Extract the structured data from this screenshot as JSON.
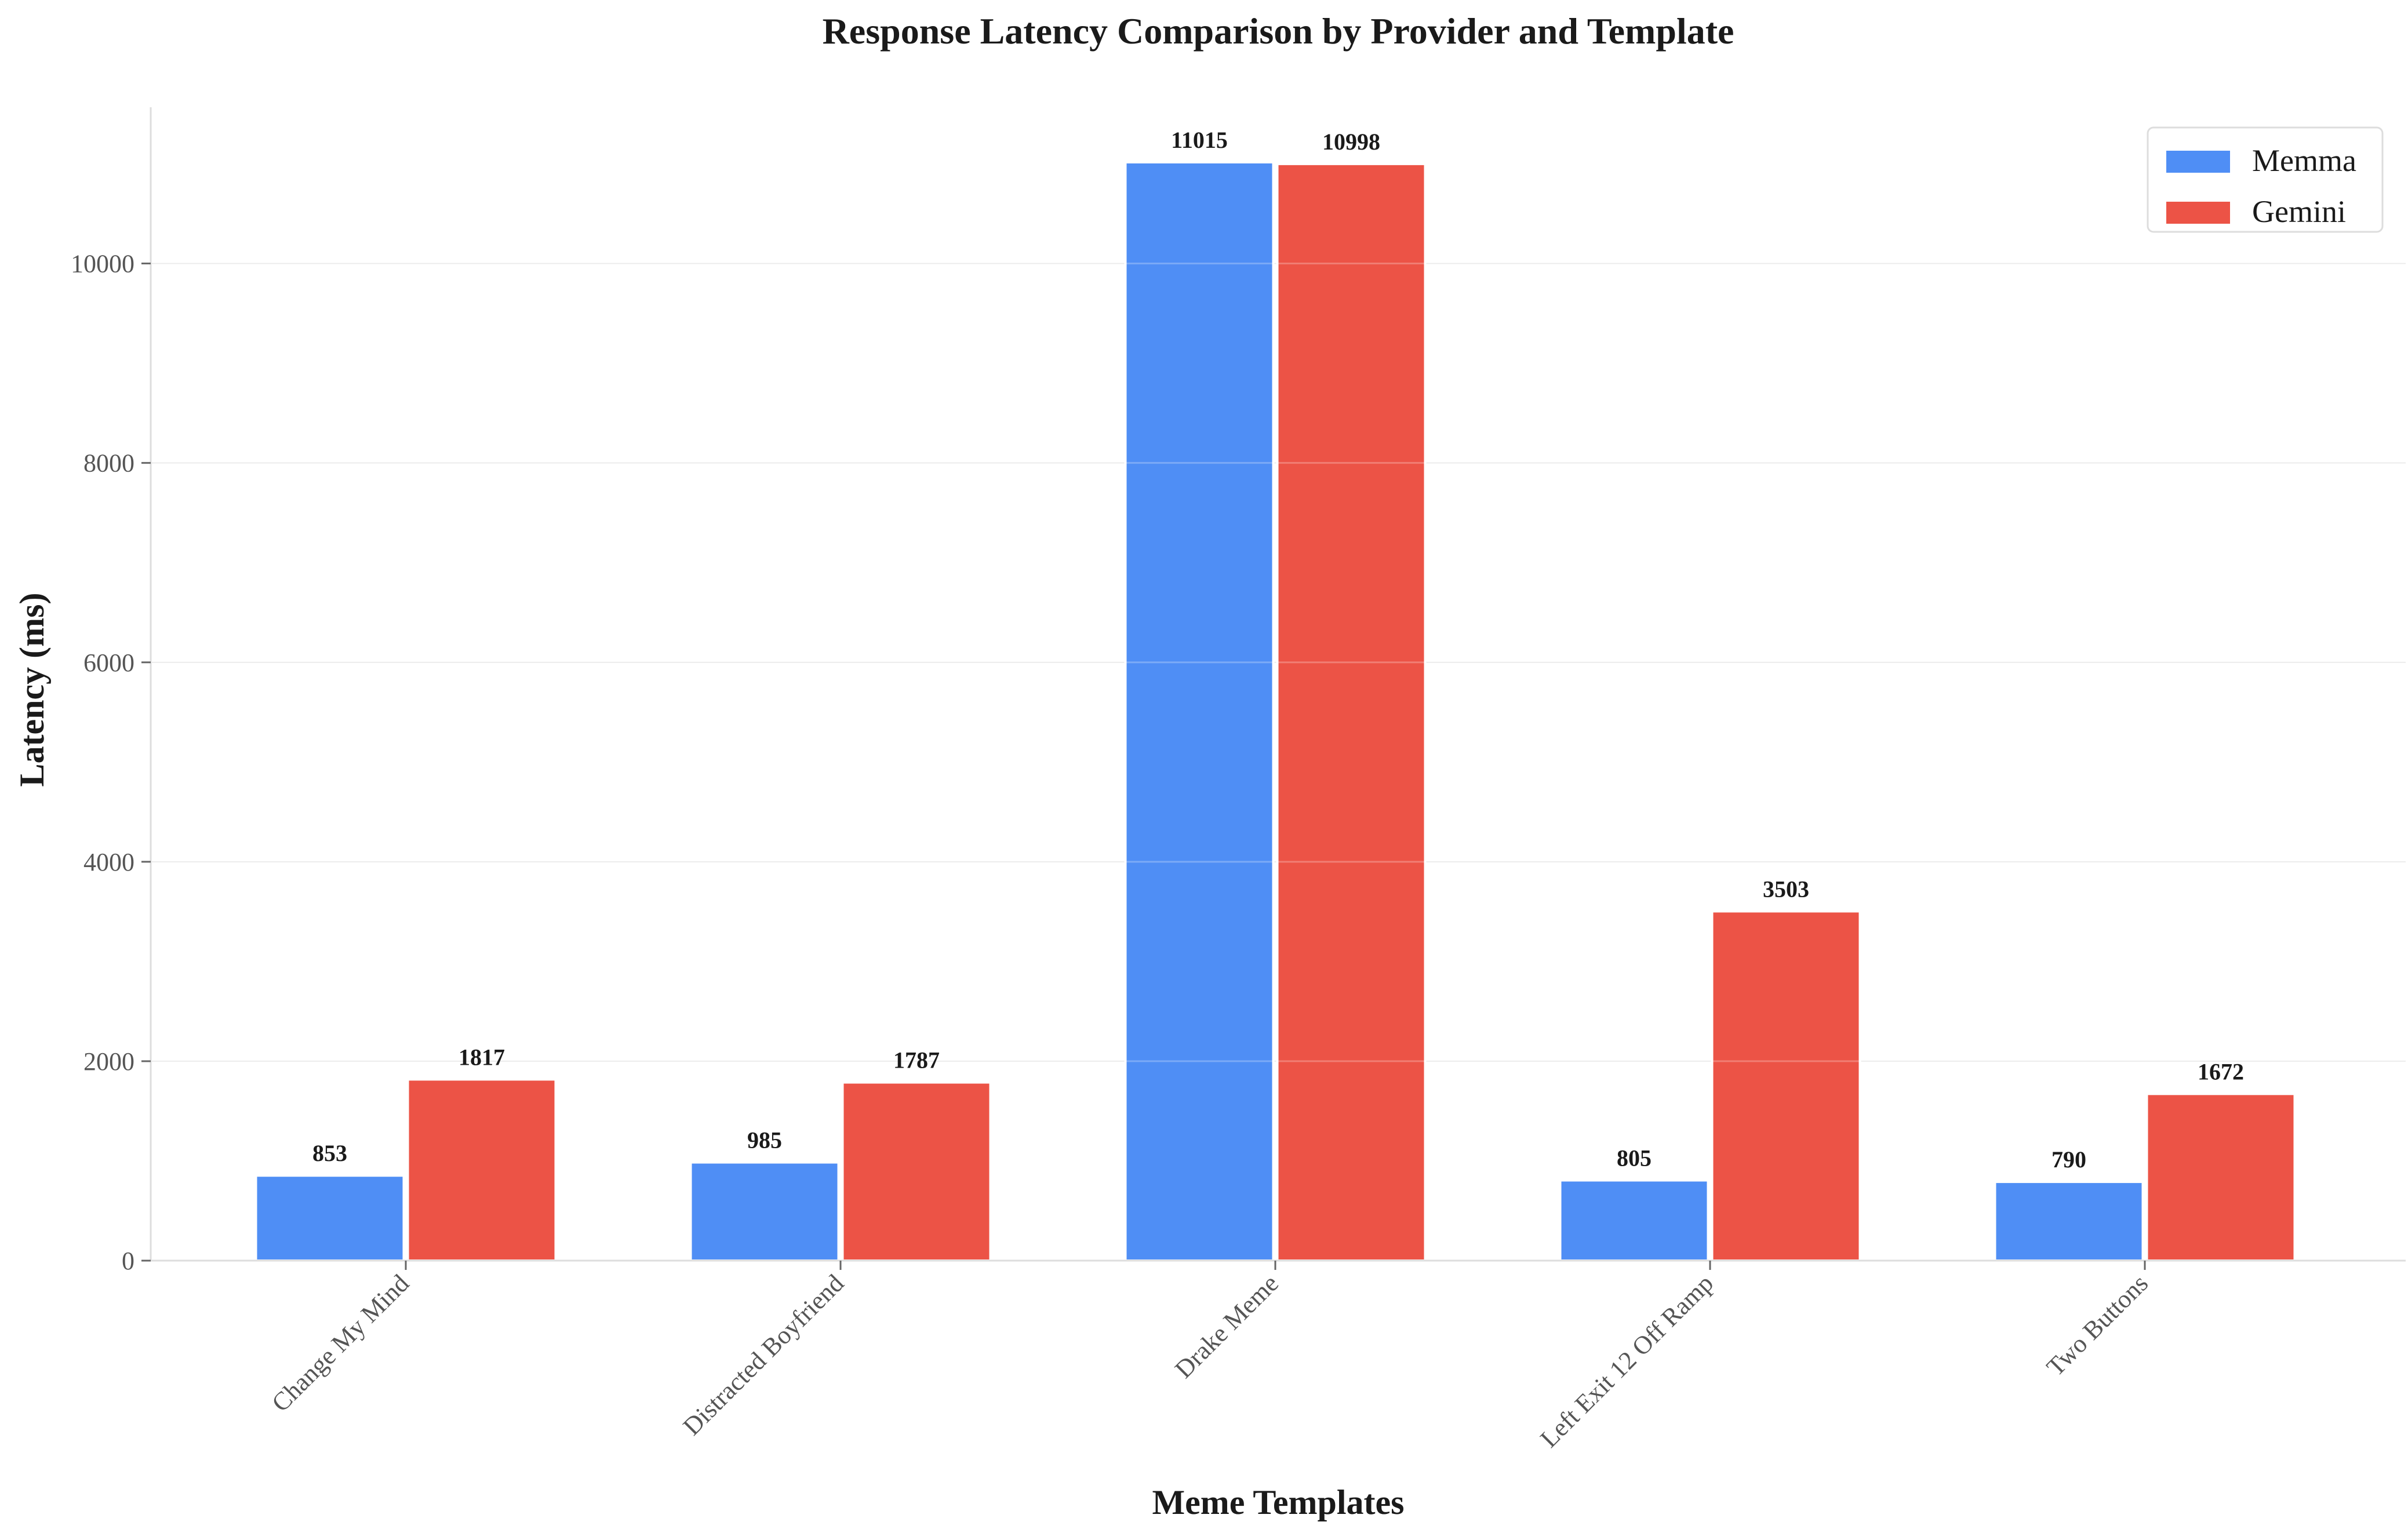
{
  "chart_data": {
    "type": "bar",
    "title": "Response Latency Comparison by Provider and Template",
    "xlabel": "Meme Templates",
    "ylabel": "Latency (ms)",
    "categories": [
      "Change My Mind",
      "Distracted Boyfriend",
      "Drake Meme",
      "Left Exit 12 Off Ramp",
      "Two Buttons"
    ],
    "series": [
      {
        "name": "Memma",
        "color": "#4f8ef5",
        "values": [
          853,
          985,
          11015,
          805,
          790
        ]
      },
      {
        "name": "Gemini",
        "color": "#ec5346",
        "values": [
          1817,
          1787,
          10998,
          3503,
          1672
        ]
      }
    ],
    "ylim": [
      0,
      11567
    ],
    "yticks": [
      0,
      2000,
      4000,
      6000,
      8000,
      10000
    ],
    "grid": true,
    "legend_position": "top-right"
  }
}
